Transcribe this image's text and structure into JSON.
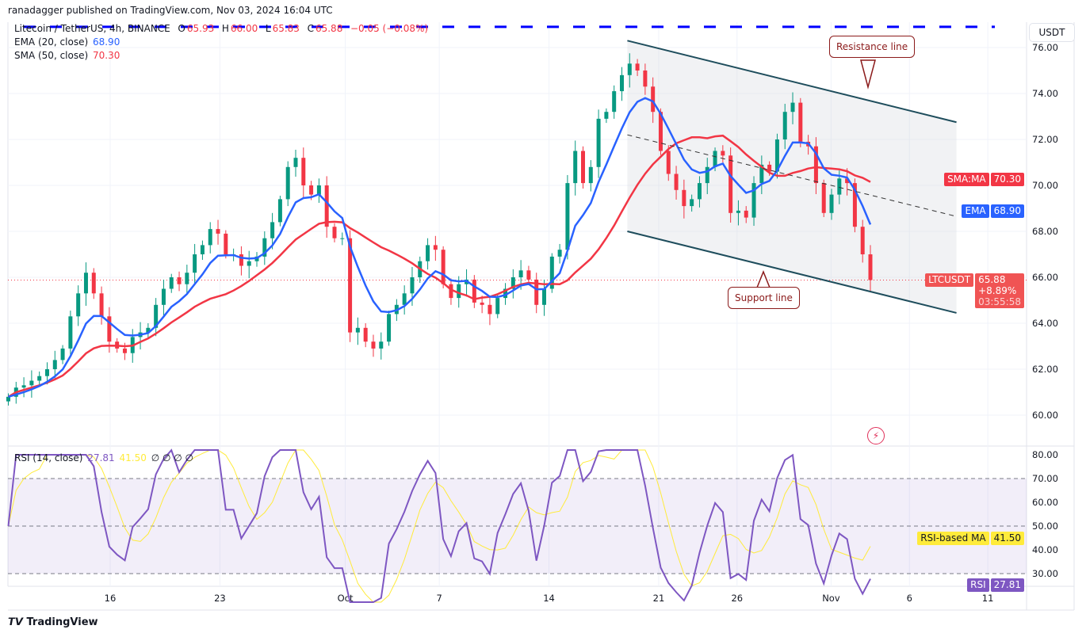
{
  "header": {
    "published": "ranadagger published on TradingView.com, Nov 03, 2024 16:04 UTC",
    "symbol": "Litecoin / TetherUS, 4h, BINANCE",
    "o_label": "O",
    "o": "65.93",
    "h_label": "H",
    "h": "66.00",
    "l_label": "L",
    "l": "65.83",
    "c_label": "C",
    "c": "65.88",
    "change": "−0.05 (−0.08%)",
    "ema_label": "EMA (20, close)",
    "ema_value": "68.90",
    "sma_label": "SMA (50, close)",
    "sma_value": "70.30",
    "rsi_label": "RSI (14, close)",
    "rsi_value": "27.81",
    "rsi_ma_value": "41.50",
    "rsi_extra": "∅ ∅ ∅ ∅"
  },
  "axis": {
    "currency": "USDT",
    "sma_tag": "SMA:MA",
    "sma_tag_value": "70.30",
    "ema_tag": "EMA",
    "ema_tag_value": "68.90",
    "symbol_tag": "LTCUSDT",
    "price_tag": "65.88",
    "pct_tag": "+8.89%",
    "countdown": "03:55:58",
    "rsi_ma_tag": "RSI-based MA",
    "rsi_ma_tag_value": "41.50",
    "rsi_tag": "RSI",
    "rsi_tag_value": "27.81"
  },
  "annotations": {
    "resistance": "Resistance line",
    "support": "Support line"
  },
  "footer": {
    "brand": "TradingView"
  },
  "colors": {
    "up": "#089981",
    "down": "#f23645",
    "ema": "#2962ff",
    "sma": "#f23645",
    "rsi": "#7e57c2",
    "rsi_ma": "#ffeb3b",
    "channel": "#1e4d5c",
    "target_line": "#0000ff"
  },
  "chart_data": {
    "type": "candlestick",
    "price_axis": {
      "min": 60,
      "max": 76,
      "step": 2,
      "ticks": [
        "60.00",
        "62.00",
        "64.00",
        "66.00",
        "68.00",
        "70.00",
        "72.00",
        "74.00",
        "76.00"
      ]
    },
    "time_ticks": [
      {
        "label": "16",
        "date": "2024-09-16"
      },
      {
        "label": "23",
        "date": "2024-09-23"
      },
      {
        "label": "Oct",
        "date": "2024-10-01"
      },
      {
        "label": "7",
        "date": "2024-10-07"
      },
      {
        "label": "14",
        "date": "2024-10-14"
      },
      {
        "label": "21",
        "date": "2024-10-21"
      },
      {
        "label": "26",
        "date": "2024-10-26"
      },
      {
        "label": "Nov",
        "date": "2024-11-01"
      },
      {
        "label": "6",
        "date": "2024-11-06"
      },
      {
        "label": "11",
        "date": "2024-11-11"
      }
    ],
    "closes": [
      60.8,
      61.2,
      61.3,
      61.5,
      61.7,
      62.0,
      62.4,
      62.9,
      64.3,
      65.3,
      66.2,
      65.3,
      64.3,
      63.2,
      62.9,
      62.7,
      63.4,
      63.6,
      63.8,
      64.8,
      65.5,
      66.0,
      65.7,
      66.2,
      67.0,
      67.4,
      68.1,
      67.9,
      67.0,
      67.0,
      66.5,
      66.7,
      66.9,
      67.7,
      68.4,
      69.4,
      70.8,
      71.2,
      70.0,
      69.6,
      70.0,
      68.2,
      67.7,
      67.7,
      63.6,
      63.8,
      63.2,
      62.9,
      63.2,
      64.4,
      64.8,
      65.3,
      66.0,
      66.7,
      67.4,
      67.2,
      65.7,
      65.1,
      65.7,
      65.9,
      64.9,
      64.8,
      64.4,
      65.1,
      65.5,
      66.0,
      66.3,
      65.9,
      64.8,
      65.5,
      66.9,
      67.2,
      70.1,
      71.5,
      70.1,
      70.8,
      72.9,
      73.2,
      74.1,
      74.8,
      75.3,
      75.0,
      74.3,
      73.2,
      71.5,
      70.5,
      69.8,
      69.1,
      69.4,
      70.1,
      70.8,
      71.5,
      71.3,
      68.8,
      68.9,
      68.6,
      70.1,
      70.9,
      70.6,
      72.0,
      73.2,
      73.6,
      71.9,
      71.7,
      70.1,
      68.8,
      69.6,
      70.3,
      70.1,
      68.2,
      67.0,
      65.88
    ],
    "ema_last": 68.9,
    "sma_last": 70.3,
    "target_line_price": 76.9,
    "channel": {
      "start_date": "2024-10-19",
      "end_date": "2024-11-09",
      "resistance": [
        76.3,
        72.75
      ],
      "midline": [
        72.2,
        68.65
      ],
      "support": [
        68.0,
        64.45
      ]
    },
    "rsi_axis": {
      "min": 20,
      "max": 80,
      "ticks": [
        "30.00",
        "40.00",
        "50.00",
        "60.00",
        "70.00",
        "80.00"
      ],
      "upper_band": 70,
      "middle_band": 50,
      "lower_band": 30
    },
    "rsi_last": 27.81,
    "rsi_ma_last": 41.5
  }
}
